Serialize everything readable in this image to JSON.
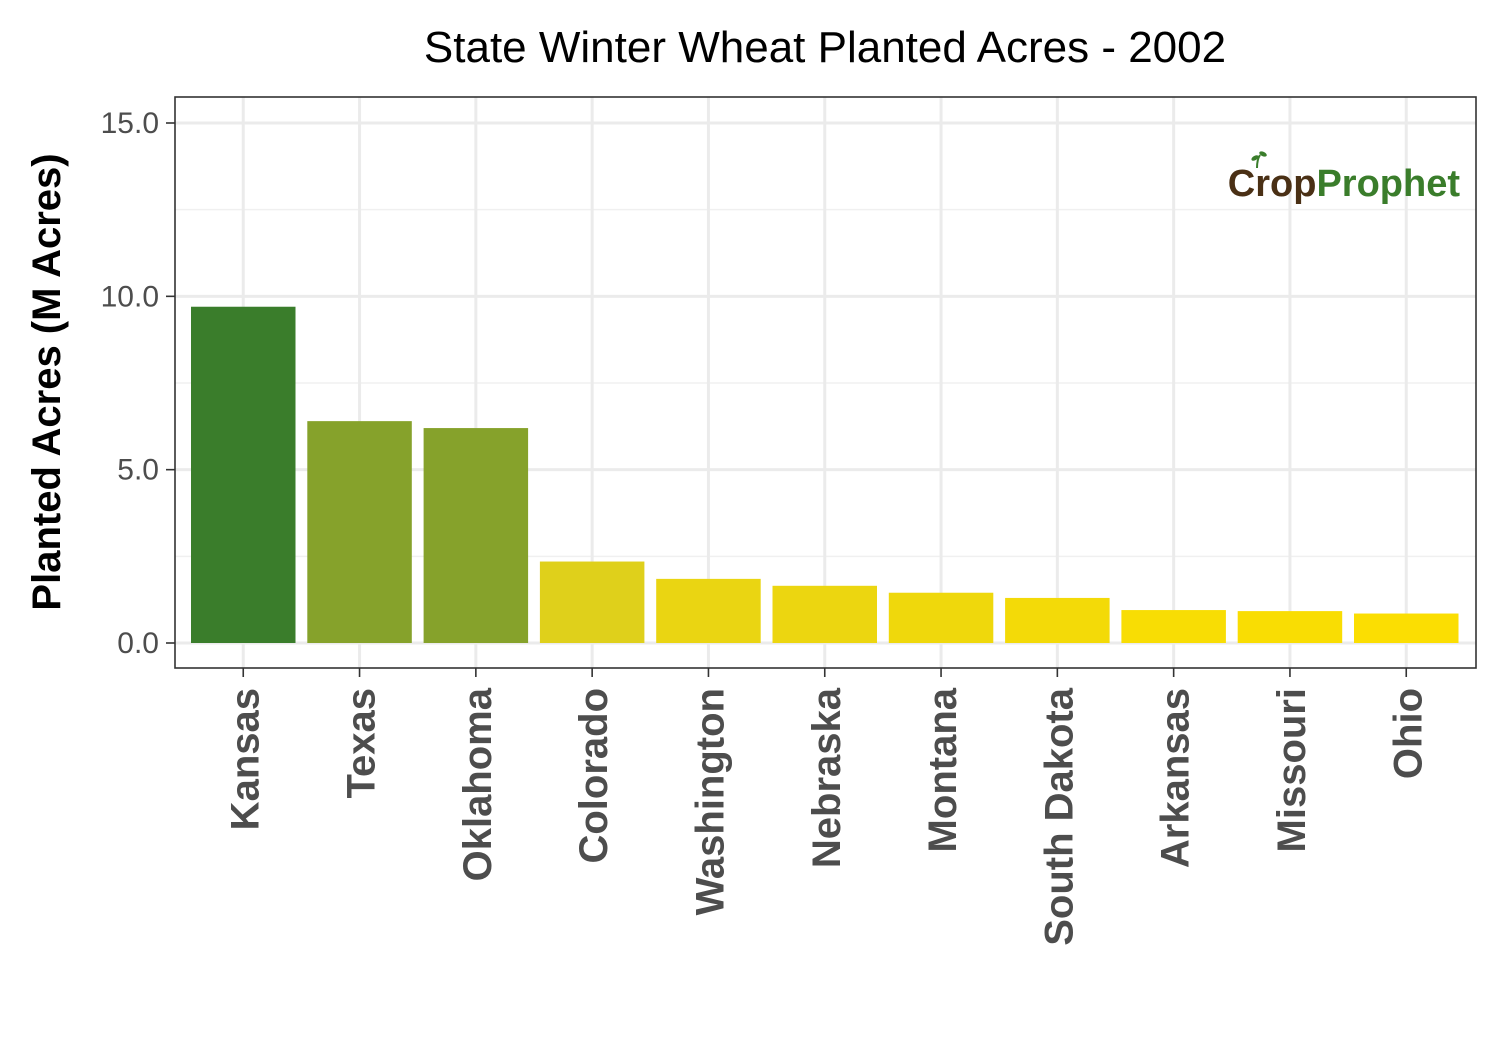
{
  "chart_data": {
    "type": "bar",
    "title": "State Winter Wheat Planted Acres - 2002",
    "xlabel": "",
    "ylabel": "Planted Acres (M Acres)",
    "ylim": [
      0,
      15.75
    ],
    "yticks": [
      0,
      5,
      10,
      15
    ],
    "ytick_labels": [
      "0.0",
      "5.0",
      "10.0",
      "15.0"
    ],
    "grid": true,
    "legend": "none",
    "categories": [
      "Kansas",
      "Texas",
      "Oklahoma",
      "Colorado",
      "Washington",
      "Nebraska",
      "Montana",
      "South Dakota",
      "Arkansas",
      "Missouri",
      "Ohio"
    ],
    "values": [
      9.7,
      6.4,
      6.2,
      2.35,
      1.85,
      1.65,
      1.45,
      1.3,
      0.95,
      0.92,
      0.85
    ],
    "colors": [
      "#3a7d2b",
      "#86a22b",
      "#86a22b",
      "#dfd01b",
      "#ead512",
      "#ecd610",
      "#efd80c",
      "#f3da08",
      "#f8dd04",
      "#f9dd03",
      "#fbde02"
    ]
  },
  "branding": {
    "logo_part1": "Crop",
    "logo_part2": "Prophet",
    "color_part1": "#4a3015",
    "color_part2": "#3a7d2b"
  }
}
